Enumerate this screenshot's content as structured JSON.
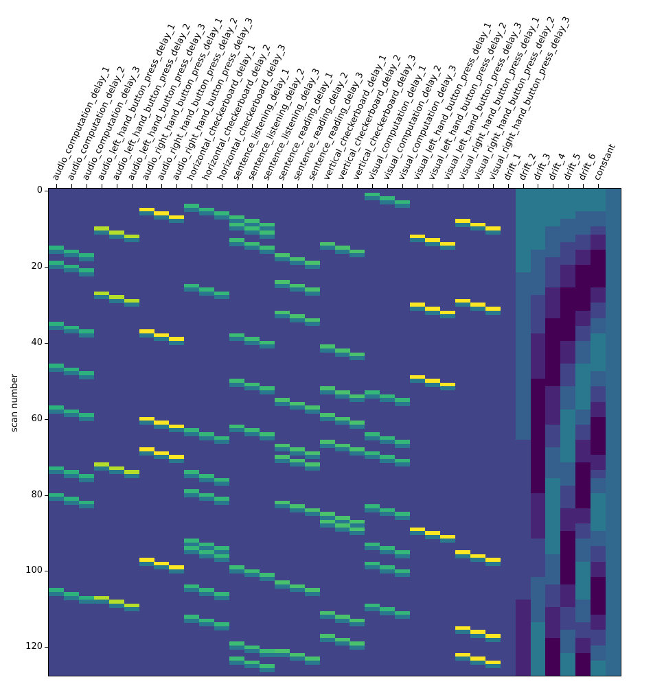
{
  "chart_data": {
    "type": "heatmap",
    "title": "",
    "xlabel": "",
    "ylabel": "scan number",
    "colormap": "viridis",
    "n_rows": 128,
    "yticks": [
      0,
      20,
      40,
      60,
      80,
      100,
      120
    ],
    "ylim": [
      0,
      127
    ],
    "grid": false,
    "columns": [
      "audio_computation_delay_1",
      "audio_computation_delay_2",
      "audio_computation_delay_3",
      "audio_left_hand_button_press_delay_1",
      "audio_left_hand_button_press_delay_2",
      "audio_left_hand_button_press_delay_3",
      "audio_right_hand_button_press_delay_1",
      "audio_right_hand_button_press_delay_2",
      "audio_right_hand_button_press_delay_3",
      "horizontal_checkerboard_delay_1",
      "horizontal_checkerboard_delay_2",
      "horizontal_checkerboard_delay_3",
      "sentence_listening_delay_1",
      "sentence_listening_delay_2",
      "sentence_listening_delay_3",
      "sentence_reading_delay_1",
      "sentence_reading_delay_2",
      "sentence_reading_delay_3",
      "vertical_checkerboard_delay_1",
      "vertical_checkerboard_delay_2",
      "vertical_checkerboard_delay_3",
      "visual_computation_delay_1",
      "visual_computation_delay_2",
      "visual_computation_delay_3",
      "visual_left_hand_button_press_delay_1",
      "visual_left_hand_button_press_delay_2",
      "visual_left_hand_button_press_delay_3",
      "visual_right_hand_button_press_delay_1",
      "visual_right_hand_button_press_delay_2",
      "visual_right_hand_button_press_delay_3",
      "drift_1",
      "drift_2",
      "drift_3",
      "drift_4",
      "drift_5",
      "drift_6",
      "constant"
    ],
    "background_color": "#414487",
    "event_groups": [
      {
        "condition": "audio_computation",
        "col": 0,
        "onsets": [
          15,
          19,
          35,
          46,
          57,
          73,
          80,
          105
        ],
        "color": "#2db27d"
      },
      {
        "condition": "audio_left_hand_button_press",
        "col": 3,
        "onsets": [
          10,
          27,
          72,
          107
        ],
        "color": "#b5de2b"
      },
      {
        "condition": "audio_right_hand_button_press",
        "col": 6,
        "onsets": [
          5,
          37,
          60,
          68,
          97
        ],
        "color": "#fde725"
      },
      {
        "condition": "horizontal_checkerboard",
        "col": 9,
        "onsets": [
          4,
          25,
          63,
          74,
          79,
          92,
          94,
          104,
          112
        ],
        "color": "#35b779"
      },
      {
        "condition": "sentence_listening",
        "col": 12,
        "onsets": [
          7,
          9,
          13,
          38,
          50,
          62,
          99,
          119,
          123
        ],
        "color": "#3dbc74"
      },
      {
        "condition": "sentence_reading",
        "col": 15,
        "onsets": [
          17,
          24,
          32,
          55,
          67,
          70,
          82,
          103,
          121
        ],
        "color": "#4ac16d"
      },
      {
        "condition": "vertical_checkerboard",
        "col": 18,
        "onsets": [
          14,
          41,
          52,
          59,
          66,
          85,
          87,
          111,
          117
        ],
        "color": "#4ac16d"
      },
      {
        "condition": "visual_computation",
        "col": 21,
        "onsets": [
          1,
          53,
          64,
          69,
          83,
          93,
          98,
          109
        ],
        "color": "#35b779"
      },
      {
        "condition": "visual_left_hand_button_press",
        "col": 24,
        "onsets": [
          12,
          30,
          49,
          89
        ],
        "color": "#fde725"
      },
      {
        "condition": "visual_right_hand_button_press",
        "col": 27,
        "onsets": [
          8,
          29,
          95,
          115,
          122
        ],
        "color": "#fde725"
      }
    ],
    "drift_columns": {
      "drift_1": "slowly varying from teal (#2a788e) at top to dark purple (#440154) at bottom",
      "drift_2": "teal at top, dark purple around scan 55-75, teal near bottom",
      "drift_3": "teal at top, dark purple near scans 20-30 and 95-100, teal between",
      "drift_4": "oscillating teal/dark purple with ~3 cycles",
      "drift_5": "oscillating teal/dark purple with ~4 cycles",
      "drift_6": "oscillating teal/dark purple with ~5 cycles",
      "constant": "uniform #31688e"
    }
  },
  "axes": {
    "y_title": "scan number",
    "y_ticks": [
      "0",
      "20",
      "40",
      "60",
      "80",
      "100",
      "120"
    ]
  }
}
